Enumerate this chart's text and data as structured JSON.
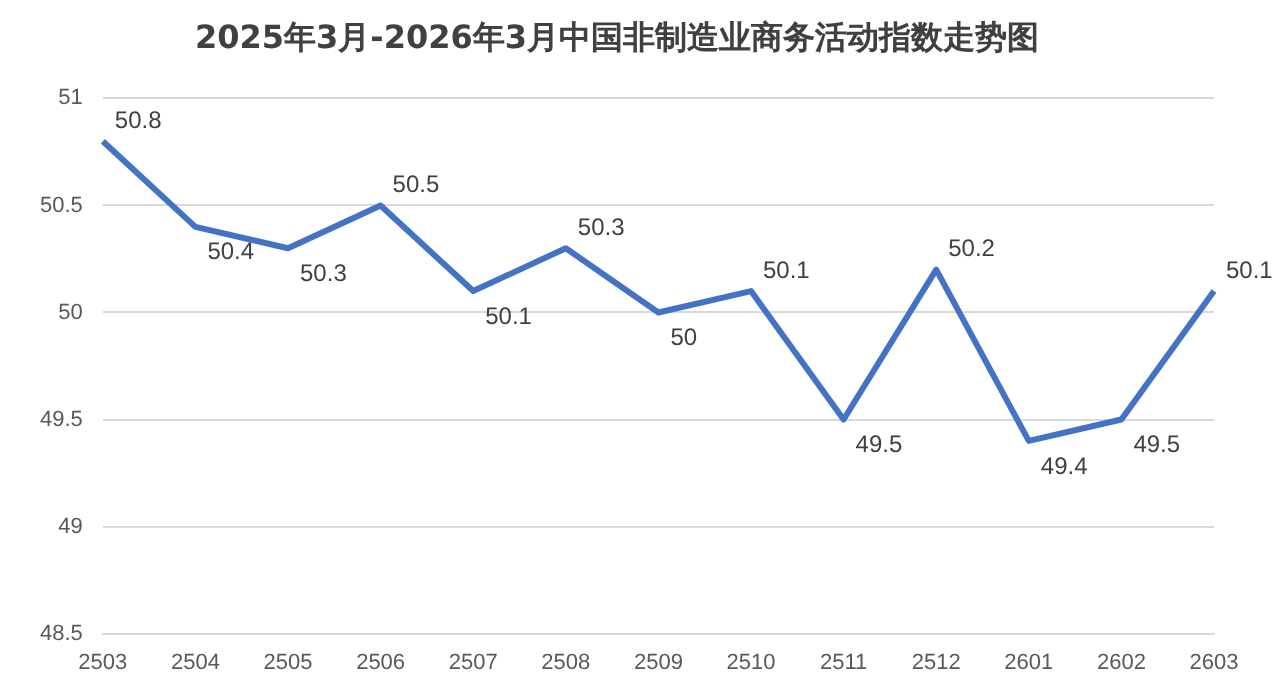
{
  "chart_data": {
    "type": "line",
    "title": "2025年3月-2026年3月中国非制造业商务活动指数走势图",
    "categories": [
      "2503",
      "2504",
      "2505",
      "2506",
      "2507",
      "2508",
      "2509",
      "2510",
      "2511",
      "2512",
      "2601",
      "2602",
      "2603"
    ],
    "values": [
      50.8,
      50.4,
      50.3,
      50.5,
      50.1,
      50.3,
      50,
      50.1,
      49.5,
      50.2,
      49.4,
      49.5,
      50.1
    ],
    "color": "#4472c4",
    "ylim": [
      48.5,
      51
    ],
    "yticks": [
      48.5,
      49,
      49.5,
      50,
      50.5,
      51
    ],
    "grid": "y",
    "data_labels": true,
    "marker": "none",
    "line_style": "solid",
    "legend": false
  }
}
